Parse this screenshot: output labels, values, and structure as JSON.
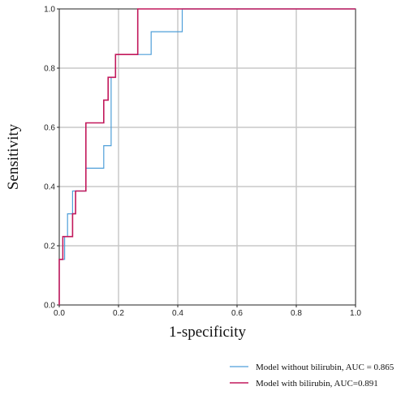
{
  "chart_data": {
    "type": "line",
    "title": "",
    "xlabel": "1-specificity",
    "ylabel": "Sensitivity",
    "xlim": [
      0,
      1
    ],
    "ylim": [
      0,
      1
    ],
    "grid": true,
    "legend_position": "bottom-right",
    "x_ticks": [
      "0.0",
      "0.2",
      "0.4",
      "0.6",
      "0.8",
      "1.0"
    ],
    "y_ticks": [
      "0.0",
      "0.2",
      "0.4",
      "0.6",
      "0.8",
      "1.0"
    ],
    "series": [
      {
        "name": "Model without bilirubin, AUC = 0.865",
        "color": "#4f9fd9",
        "x": [
          0,
          0,
          0.018,
          0.018,
          0.028,
          0.028,
          0.045,
          0.045,
          0.09,
          0.09,
          0.15,
          0.15,
          0.175,
          0.175,
          0.19,
          0.19,
          0.265,
          0.265,
          0.31,
          0.31,
          0.415,
          0.415,
          1
        ],
        "y": [
          0,
          0.154,
          0.154,
          0.231,
          0.231,
          0.308,
          0.308,
          0.385,
          0.385,
          0.462,
          0.462,
          0.538,
          0.538,
          0.769,
          0.769,
          0.846,
          0.846,
          0.846,
          0.846,
          0.923,
          0.923,
          1,
          1
        ]
      },
      {
        "name": "Model with bilirubin, AUC=0.891",
        "color": "#c2185b",
        "x": [
          0,
          0,
          0.012,
          0.012,
          0.045,
          0.045,
          0.055,
          0.055,
          0.09,
          0.09,
          0.15,
          0.15,
          0.165,
          0.165,
          0.19,
          0.19,
          0.265,
          0.265,
          1
        ],
        "y": [
          0,
          0.154,
          0.154,
          0.231,
          0.231,
          0.308,
          0.308,
          0.385,
          0.385,
          0.615,
          0.615,
          0.692,
          0.692,
          0.769,
          0.769,
          0.846,
          0.846,
          1,
          1
        ]
      }
    ]
  }
}
